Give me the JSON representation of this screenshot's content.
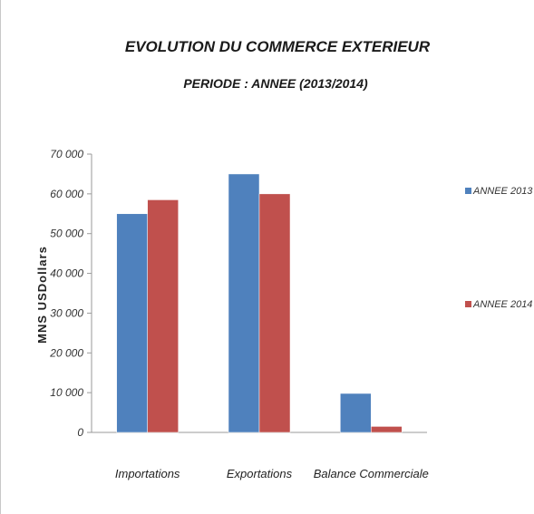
{
  "chart_data": {
    "type": "bar",
    "title": "EVOLUTION DU COMMERCE EXTERIEUR",
    "subtitle": "PERIODE : ANNEE (2013/2014)",
    "ylabel": "MNS USDollars",
    "xlabel": "",
    "categories": [
      "Importations",
      "Exportations",
      "Balance Commerciale"
    ],
    "series": [
      {
        "name": "ANNEE 2013",
        "color": "#4f81bd",
        "values": [
          55000,
          65000,
          9800
        ]
      },
      {
        "name": "ANNEE 2014",
        "color": "#c0504d",
        "values": [
          58500,
          60000,
          1500
        ]
      }
    ],
    "ylim": [
      0,
      70000
    ],
    "yticks": [
      0,
      10000,
      20000,
      30000,
      40000,
      50000,
      60000,
      70000
    ],
    "ytick_labels": [
      "0",
      "10 000",
      "20 000",
      "30 000",
      "40 000",
      "50 000",
      "60 000",
      "70 000"
    ],
    "grid": false,
    "legend": "right"
  }
}
